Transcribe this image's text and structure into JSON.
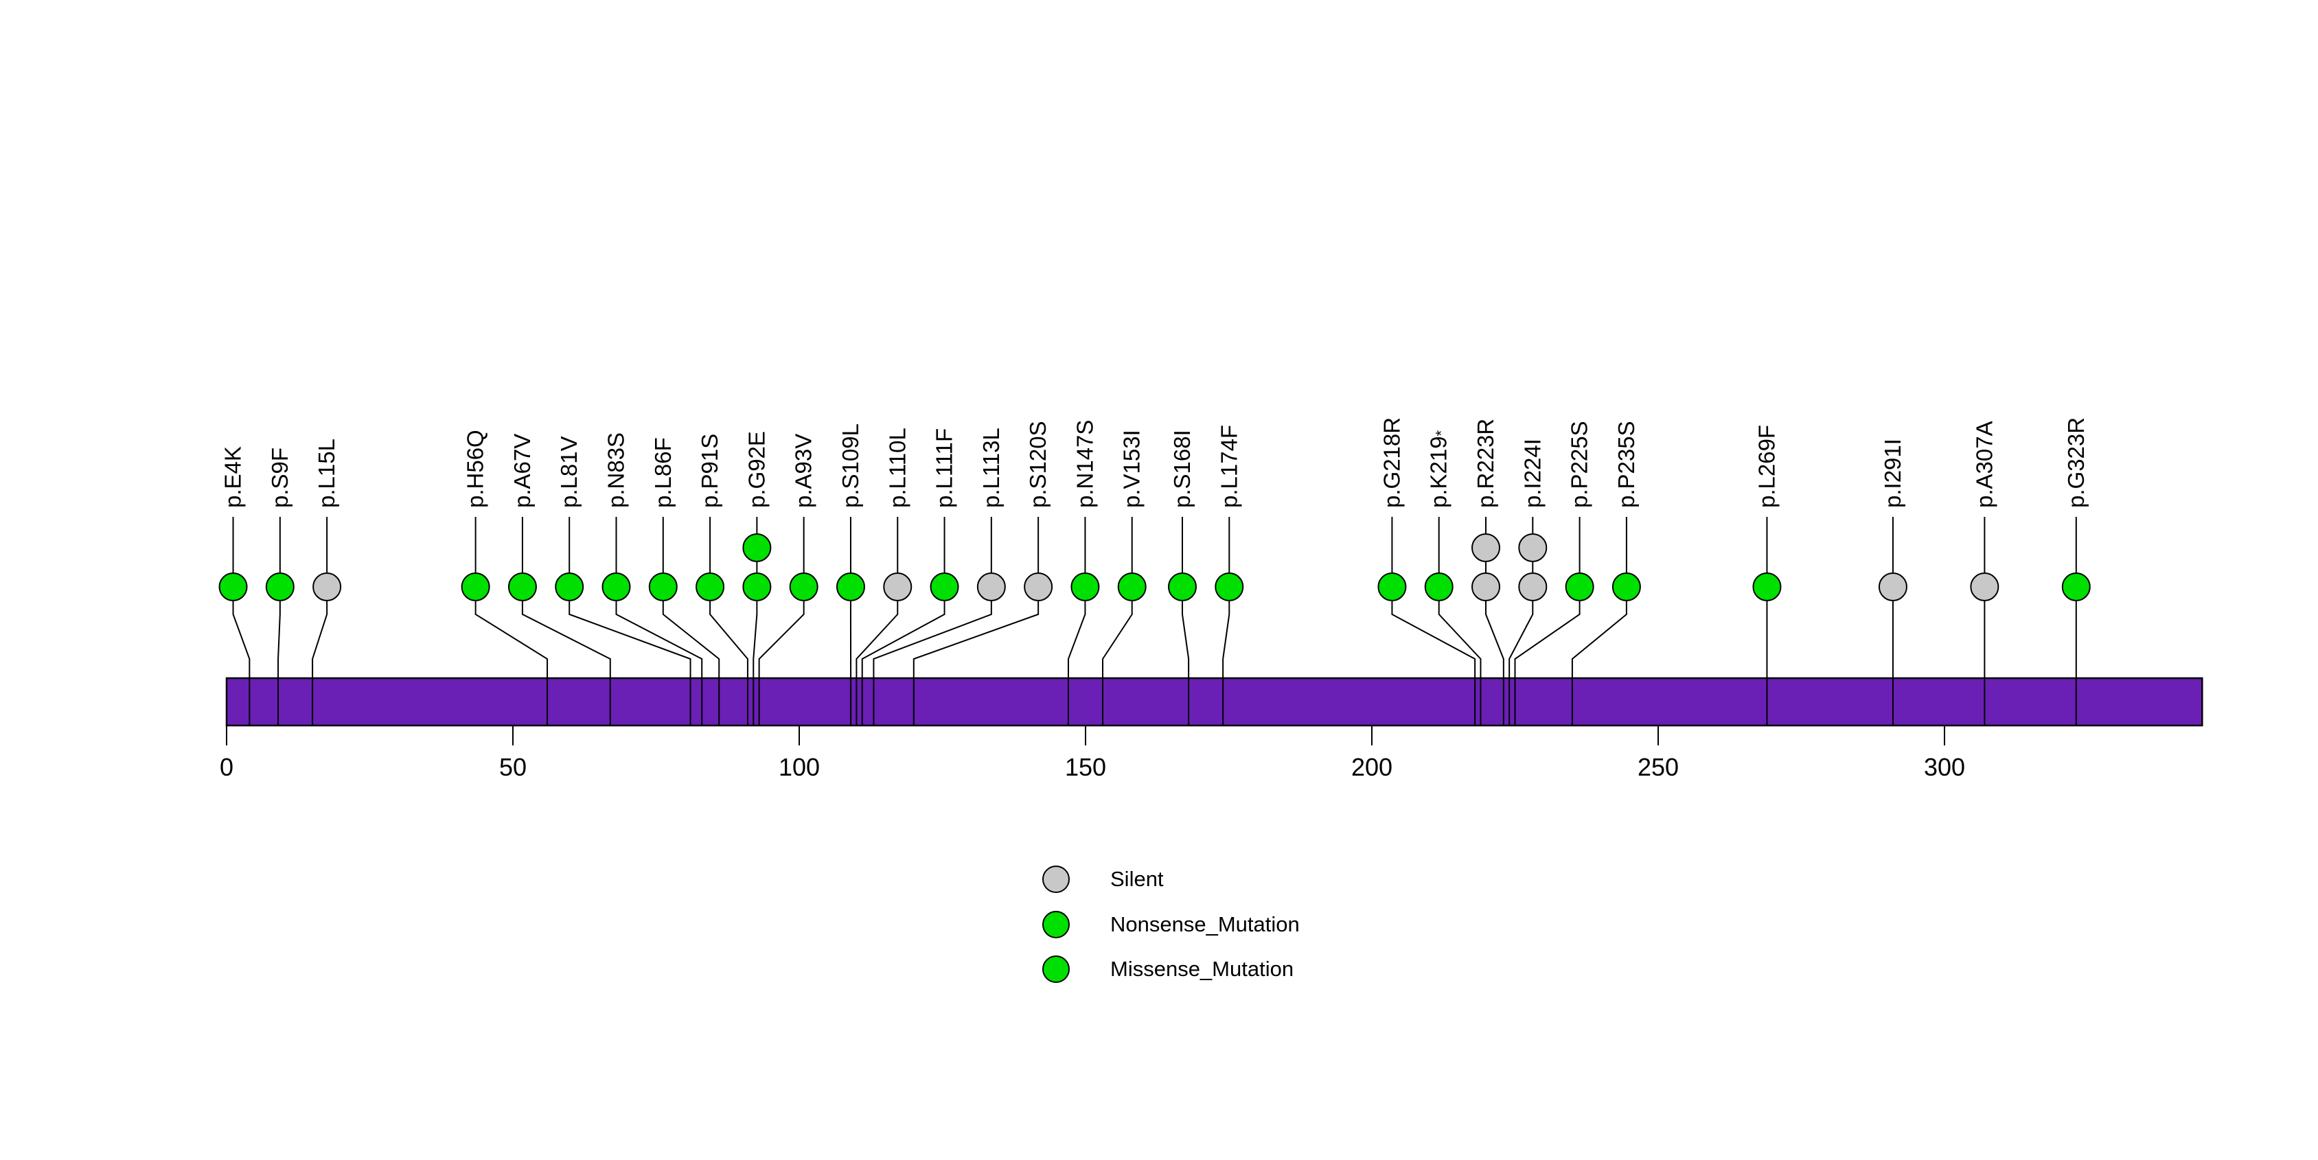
{
  "chart_data": {
    "type": "lollipop",
    "title": "",
    "description": "Protein mutation lollipop plot with amino-acid change labels over a purple protein body bar",
    "x_axis": {
      "ticks": [
        0,
        50,
        100,
        150,
        200,
        250,
        300
      ],
      "domain": [
        0,
        345
      ],
      "grid": false
    },
    "protein_bar": {
      "start": 0,
      "end": 345,
      "color": "#6A1FB5",
      "border_color": "#000000"
    },
    "colors": {
      "Missense_Mutation": "#00E000",
      "Nonsense_Mutation": "#00E000",
      "Silent": "#C8C8C8"
    },
    "legend": [
      {
        "label": "Silent",
        "color": "#C8C8C8"
      },
      {
        "label": "Nonsense_Mutation",
        "color": "#00E000"
      },
      {
        "label": "Missense_Mutation",
        "color": "#00E000"
      }
    ],
    "legend_position": "bottom-center",
    "mutations": [
      {
        "label": "p.E4K",
        "pos": 4,
        "type": "Missense_Mutation",
        "count": 1
      },
      {
        "label": "p.S9F",
        "pos": 9,
        "type": "Missense_Mutation",
        "count": 1
      },
      {
        "label": "p.L15L",
        "pos": 15,
        "type": "Silent",
        "count": 1
      },
      {
        "label": "p.H56Q",
        "pos": 56,
        "type": "Missense_Mutation",
        "count": 1
      },
      {
        "label": "p.A67V",
        "pos": 67,
        "type": "Missense_Mutation",
        "count": 1
      },
      {
        "label": "p.L81V",
        "pos": 81,
        "type": "Missense_Mutation",
        "count": 1
      },
      {
        "label": "p.N83S",
        "pos": 83,
        "type": "Missense_Mutation",
        "count": 1
      },
      {
        "label": "p.L86F",
        "pos": 86,
        "type": "Missense_Mutation",
        "count": 1
      },
      {
        "label": "p.P91S",
        "pos": 91,
        "type": "Missense_Mutation",
        "count": 1
      },
      {
        "label": "p.G92E",
        "pos": 92,
        "type": "Missense_Mutation",
        "count": 2
      },
      {
        "label": "p.A93V",
        "pos": 93,
        "type": "Missense_Mutation",
        "count": 1
      },
      {
        "label": "p.S109L",
        "pos": 109,
        "type": "Missense_Mutation",
        "count": 1
      },
      {
        "label": "p.L110L",
        "pos": 110,
        "type": "Silent",
        "count": 1
      },
      {
        "label": "p.L111F",
        "pos": 111,
        "type": "Missense_Mutation",
        "count": 1
      },
      {
        "label": "p.L113L",
        "pos": 113,
        "type": "Silent",
        "count": 1
      },
      {
        "label": "p.S120S",
        "pos": 120,
        "type": "Silent",
        "count": 1
      },
      {
        "label": "p.N147S",
        "pos": 147,
        "type": "Missense_Mutation",
        "count": 1
      },
      {
        "label": "p.V153I",
        "pos": 153,
        "type": "Missense_Mutation",
        "count": 1
      },
      {
        "label": "p.S168I",
        "pos": 168,
        "type": "Missense_Mutation",
        "count": 1
      },
      {
        "label": "p.L174F",
        "pos": 174,
        "type": "Missense_Mutation",
        "count": 1
      },
      {
        "label": "p.G218R",
        "pos": 218,
        "type": "Missense_Mutation",
        "count": 1
      },
      {
        "label": "p.K219*",
        "pos": 219,
        "type": "Nonsense_Mutation",
        "count": 1
      },
      {
        "label": "p.R223R",
        "pos": 223,
        "type": "Silent",
        "count": 2
      },
      {
        "label": "p.I224I",
        "pos": 224,
        "type": "Silent",
        "count": 2
      },
      {
        "label": "p.P225S",
        "pos": 225,
        "type": "Missense_Mutation",
        "count": 1
      },
      {
        "label": "p.P235S",
        "pos": 235,
        "type": "Missense_Mutation",
        "count": 1
      },
      {
        "label": "p.L269F",
        "pos": 269,
        "type": "Missense_Mutation",
        "count": 1
      },
      {
        "label": "p.I291I",
        "pos": 291,
        "type": "Silent",
        "count": 1
      },
      {
        "label": "p.A307A",
        "pos": 307,
        "type": "Silent",
        "count": 1
      },
      {
        "label": "p.G323R",
        "pos": 323,
        "type": "Missense_Mutation",
        "count": 1
      }
    ]
  }
}
